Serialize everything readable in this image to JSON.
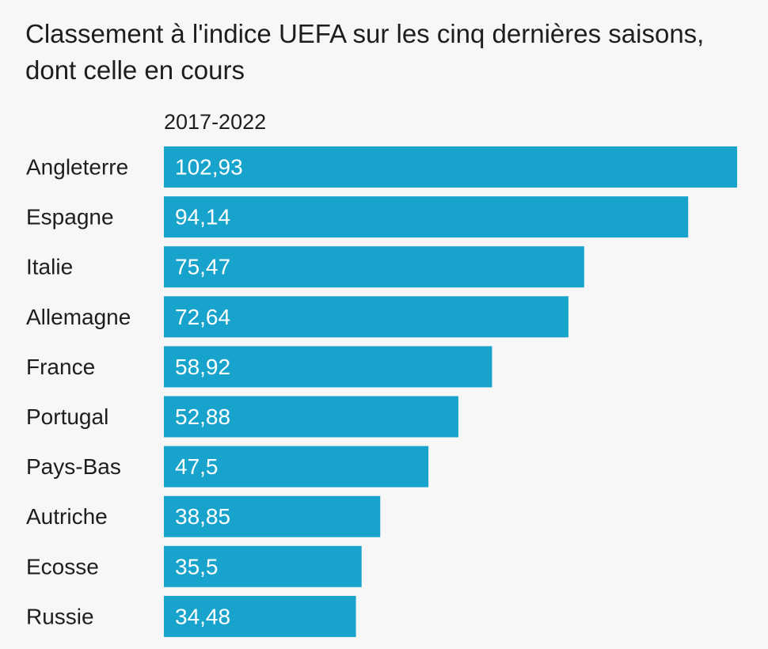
{
  "colors": {
    "bar": "#18a3cd",
    "background": "#f7f7f7",
    "text": "#1e1e1e",
    "value_text": "#ffffff"
  },
  "chart_data": {
    "type": "bar",
    "orientation": "horizontal",
    "title": "Classement à l'indice UEFA sur les cinq dernières saisons, dont celle en cours",
    "series_label": "2017-2022",
    "categories": [
      "Angleterre",
      "Espagne",
      "Italie",
      "Allemagne",
      "France",
      "Portugal",
      "Pays-Bas",
      "Autriche",
      "Ecosse",
      "Russie"
    ],
    "values": [
      102.93,
      94.14,
      75.47,
      72.64,
      58.92,
      52.88,
      47.5,
      38.85,
      35.5,
      34.48
    ],
    "value_labels": [
      "102,93",
      "94,14",
      "75,47",
      "72,64",
      "58,92",
      "52,88",
      "47,5",
      "38,85",
      "35,5",
      "34,48"
    ],
    "xlim": [
      0,
      102.93
    ],
    "grid": false,
    "legend": "none"
  }
}
